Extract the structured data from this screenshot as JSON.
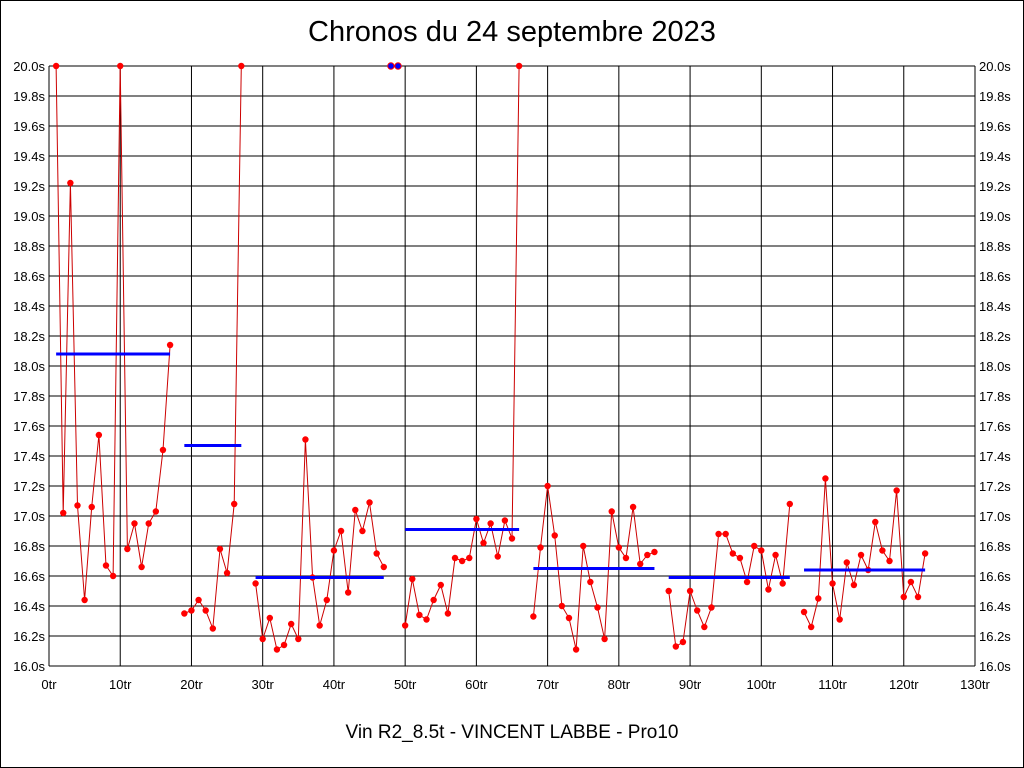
{
  "chart_data": {
    "type": "line",
    "title": "Chronos du 24 septembre 2023",
    "subtitle": "Vin R2_8.5t - VINCENT LABBE - Pro10",
    "xlabel": "",
    "ylabel": "",
    "xlim": [
      0,
      130
    ],
    "ylim": [
      16.0,
      20.0
    ],
    "x_ticks": [
      0,
      10,
      20,
      30,
      40,
      50,
      60,
      70,
      80,
      90,
      100,
      110,
      120,
      130
    ],
    "x_tick_labels": [
      "0tr",
      "10tr",
      "20tr",
      "30tr",
      "40tr",
      "50tr",
      "60tr",
      "70tr",
      "80tr",
      "90tr",
      "100tr",
      "110tr",
      "120tr",
      "130tr"
    ],
    "y_ticks": [
      16.0,
      16.2,
      16.4,
      16.6,
      16.8,
      17.0,
      17.2,
      17.4,
      17.6,
      17.8,
      18.0,
      18.2,
      18.4,
      18.6,
      18.8,
      19.0,
      19.2,
      19.4,
      19.6,
      19.8,
      20.0
    ],
    "y_tick_labels": [
      "16.0s",
      "16.2s",
      "16.4s",
      "16.6s",
      "16.8s",
      "17.0s",
      "17.2s",
      "17.4s",
      "17.6s",
      "17.8s",
      "18.0s",
      "18.2s",
      "18.4s",
      "18.6s",
      "18.8s",
      "19.0s",
      "19.2s",
      "19.4s",
      "19.6s",
      "19.8s",
      "20.0s"
    ],
    "grid": true,
    "colors": {
      "laps": "#ff0000",
      "line": "#cc0000",
      "averages": "#0000ff",
      "grid": "#000000"
    },
    "segments": [
      {
        "points": [
          [
            1,
            20.0
          ],
          [
            2,
            17.02
          ],
          [
            3,
            19.22
          ],
          [
            4,
            17.07
          ],
          [
            5,
            16.44
          ],
          [
            6,
            17.06
          ],
          [
            7,
            17.54
          ],
          [
            8,
            16.67
          ],
          [
            9,
            16.6
          ],
          [
            10,
            20.0
          ],
          [
            11,
            16.78
          ],
          [
            12,
            16.95
          ],
          [
            13,
            16.66
          ],
          [
            14,
            16.95
          ],
          [
            15,
            17.03
          ],
          [
            16,
            17.44
          ],
          [
            17,
            18.14
          ]
        ]
      },
      {
        "points": [
          [
            19,
            16.35
          ],
          [
            20,
            16.37
          ],
          [
            21,
            16.44
          ],
          [
            22,
            16.37
          ],
          [
            23,
            16.25
          ],
          [
            24,
            16.78
          ],
          [
            25,
            16.62
          ],
          [
            26,
            17.08
          ],
          [
            27,
            20.0
          ]
        ]
      },
      {
        "points": [
          [
            29,
            16.55
          ],
          [
            30,
            16.18
          ],
          [
            31,
            16.32
          ],
          [
            32,
            16.11
          ],
          [
            33,
            16.14
          ],
          [
            34,
            16.28
          ],
          [
            35,
            16.18
          ],
          [
            36,
            17.51
          ],
          [
            37,
            16.59
          ],
          [
            38,
            16.27
          ],
          [
            39,
            16.44
          ],
          [
            40,
            16.77
          ],
          [
            41,
            16.9
          ],
          [
            42,
            16.49
          ],
          [
            43,
            17.04
          ],
          [
            44,
            16.9
          ],
          [
            45,
            17.09
          ],
          [
            46,
            16.75
          ],
          [
            47,
            16.66
          ]
        ]
      },
      {
        "points": [
          [
            50,
            16.27
          ],
          [
            51,
            16.58
          ],
          [
            52,
            16.34
          ],
          [
            53,
            16.31
          ],
          [
            54,
            16.44
          ],
          [
            55,
            16.54
          ],
          [
            56,
            16.35
          ],
          [
            57,
            16.72
          ],
          [
            58,
            16.7
          ],
          [
            59,
            16.72
          ],
          [
            60,
            16.98
          ],
          [
            61,
            16.82
          ],
          [
            62,
            16.95
          ],
          [
            63,
            16.73
          ],
          [
            64,
            16.97
          ],
          [
            65,
            16.85
          ],
          [
            66,
            20.0
          ]
        ]
      },
      {
        "points": [
          [
            68,
            16.33
          ],
          [
            69,
            16.79
          ],
          [
            70,
            17.2
          ],
          [
            71,
            16.87
          ],
          [
            72,
            16.4
          ],
          [
            73,
            16.32
          ],
          [
            74,
            16.11
          ],
          [
            75,
            16.8
          ],
          [
            76,
            16.56
          ],
          [
            77,
            16.39
          ],
          [
            78,
            16.18
          ],
          [
            79,
            17.03
          ],
          [
            80,
            16.79
          ],
          [
            81,
            16.72
          ],
          [
            82,
            17.06
          ],
          [
            83,
            16.68
          ],
          [
            84,
            16.74
          ],
          [
            85,
            16.76
          ]
        ]
      },
      {
        "points": [
          [
            87,
            16.5
          ],
          [
            88,
            16.13
          ],
          [
            89,
            16.16
          ],
          [
            90,
            16.5
          ],
          [
            91,
            16.37
          ],
          [
            92,
            16.26
          ],
          [
            93,
            16.39
          ],
          [
            94,
            16.88
          ],
          [
            95,
            16.88
          ],
          [
            96,
            16.75
          ],
          [
            97,
            16.72
          ],
          [
            98,
            16.56
          ],
          [
            99,
            16.8
          ],
          [
            100,
            16.77
          ],
          [
            101,
            16.51
          ],
          [
            102,
            16.74
          ],
          [
            103,
            16.55
          ],
          [
            104,
            17.08
          ]
        ]
      },
      {
        "points": [
          [
            106,
            16.36
          ],
          [
            107,
            16.26
          ],
          [
            108,
            16.45
          ],
          [
            109,
            17.25
          ],
          [
            110,
            16.55
          ],
          [
            111,
            16.31
          ],
          [
            112,
            16.69
          ],
          [
            113,
            16.54
          ],
          [
            114,
            16.74
          ],
          [
            115,
            16.64
          ],
          [
            116,
            16.96
          ],
          [
            117,
            16.77
          ],
          [
            118,
            16.7
          ],
          [
            119,
            17.17
          ],
          [
            120,
            16.46
          ],
          [
            121,
            16.56
          ],
          [
            122,
            16.46
          ],
          [
            123,
            16.75
          ]
        ]
      }
    ],
    "off_scale_markers": [
      48,
      49
    ],
    "averages": [
      {
        "x_start": 1,
        "x_end": 17,
        "value": 18.08
      },
      {
        "x_start": 19,
        "x_end": 27,
        "value": 17.47
      },
      {
        "x_start": 29,
        "x_end": 47,
        "value": 16.59
      },
      {
        "x_start": 50,
        "x_end": 66,
        "value": 16.91
      },
      {
        "x_start": 68,
        "x_end": 85,
        "value": 16.65
      },
      {
        "x_start": 87,
        "x_end": 104,
        "value": 16.59
      },
      {
        "x_start": 106,
        "x_end": 123,
        "value": 16.64
      }
    ]
  }
}
